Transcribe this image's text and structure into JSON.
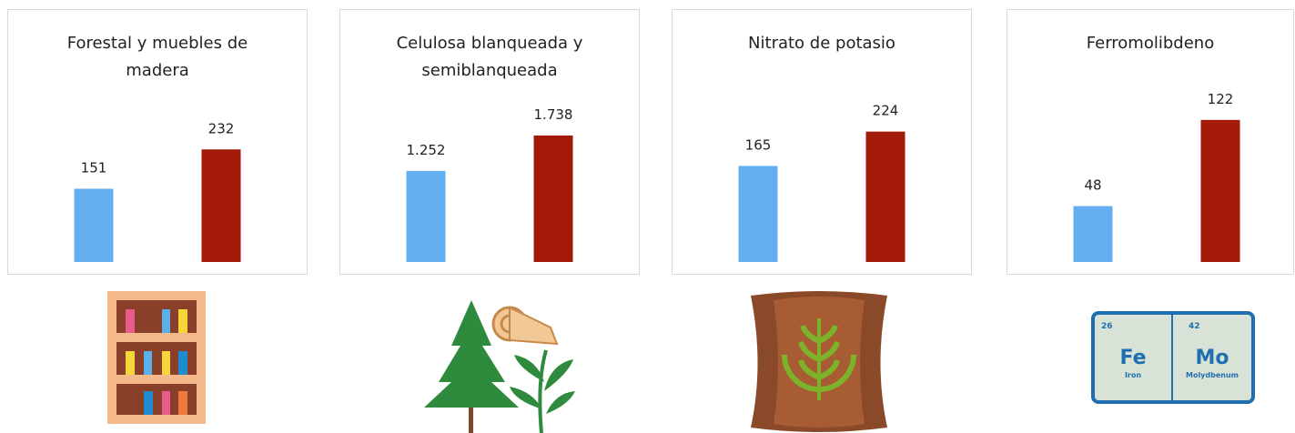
{
  "chart_data": [
    {
      "type": "bar",
      "title": "Forestal y muebles de madera",
      "categories": [
        null,
        null
      ],
      "values": [
        151,
        232
      ],
      "colors": [
        "#64aff0",
        "#a31a0a"
      ],
      "ylim": [
        0,
        300
      ]
    },
    {
      "type": "bar",
      "title": "Celulosa blanqueada y semiblanqueada",
      "categories": [
        null,
        null
      ],
      "values": [
        1252,
        1738
      ],
      "value_labels": [
        "1.252",
        "1.738"
      ],
      "colors": [
        "#64aff0",
        "#a31a0a"
      ],
      "ylim": [
        0,
        2000
      ]
    },
    {
      "type": "bar",
      "title": "Nitrato de potasio",
      "categories": [
        null,
        null
      ],
      "values": [
        165,
        224
      ],
      "colors": [
        "#64aff0",
        "#a31a0a"
      ],
      "ylim": [
        0,
        250
      ]
    },
    {
      "type": "bar",
      "title": "Ferromolibdeno",
      "categories": [
        null,
        null
      ],
      "values": [
        48,
        122
      ],
      "colors": [
        "#64aff0",
        "#a31a0a"
      ],
      "ylim": [
        0,
        125
      ]
    }
  ],
  "element_tile": {
    "fe_number": "26",
    "fe_symbol": "Fe",
    "fe_name": "Iron",
    "mo_number": "42",
    "mo_symbol": "Mo",
    "mo_name": "Molydbenum"
  }
}
